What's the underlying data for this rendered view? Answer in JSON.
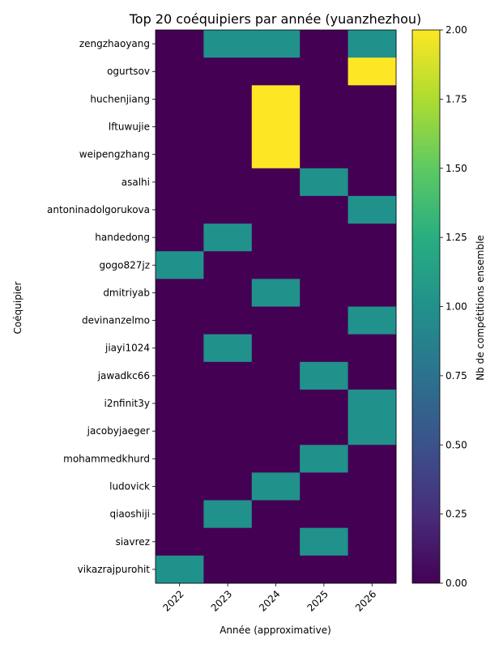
{
  "chart_data": {
    "type": "heatmap",
    "title": "Top 20 coéquipiers par année (yuanzhezhou)",
    "xlabel": "Année (approximative)",
    "ylabel": "Coéquipier",
    "x_categories": [
      "2022",
      "2023",
      "2024",
      "2025",
      "2026"
    ],
    "y_categories": [
      "zengzhaoyang",
      "ogurtsov",
      "huchenjiang",
      "lftuwujie",
      "weipengzhang",
      "asalhi",
      "antoninadolgorukova",
      "handedong",
      "gogo827jz",
      "dmitriyab",
      "devinanzelmo",
      "jiayi1024",
      "jawadkc66",
      "i2nfinit3y",
      "jacobyjaeger",
      "mohammedkhurd",
      "ludovick",
      "qiaoshiji",
      "siavrez",
      "vikazrajpurohit"
    ],
    "values": [
      [
        0,
        1,
        1,
        0,
        1
      ],
      [
        0,
        0,
        0,
        0,
        2
      ],
      [
        0,
        0,
        2,
        0,
        0
      ],
      [
        0,
        0,
        2,
        0,
        0
      ],
      [
        0,
        0,
        2,
        0,
        0
      ],
      [
        0,
        0,
        0,
        1,
        0
      ],
      [
        0,
        0,
        0,
        0,
        1
      ],
      [
        0,
        1,
        0,
        0,
        0
      ],
      [
        1,
        0,
        0,
        0,
        0
      ],
      [
        0,
        0,
        1,
        0,
        0
      ],
      [
        0,
        0,
        0,
        0,
        1
      ],
      [
        0,
        1,
        0,
        0,
        0
      ],
      [
        0,
        0,
        0,
        1,
        0
      ],
      [
        0,
        0,
        0,
        0,
        1
      ],
      [
        0,
        0,
        0,
        0,
        1
      ],
      [
        0,
        0,
        0,
        1,
        0
      ],
      [
        0,
        0,
        1,
        0,
        0
      ],
      [
        0,
        1,
        0,
        0,
        0
      ],
      [
        0,
        0,
        0,
        1,
        0
      ],
      [
        1,
        0,
        0,
        0,
        0
      ]
    ],
    "colormap": "viridis",
    "colorbar": {
      "label": "Nb de compétitions ensemble",
      "range": [
        0,
        2
      ],
      "ticks": [
        "0.00",
        "0.25",
        "0.50",
        "0.75",
        "1.00",
        "1.25",
        "1.50",
        "1.75",
        "2.00"
      ]
    },
    "grid": false
  }
}
